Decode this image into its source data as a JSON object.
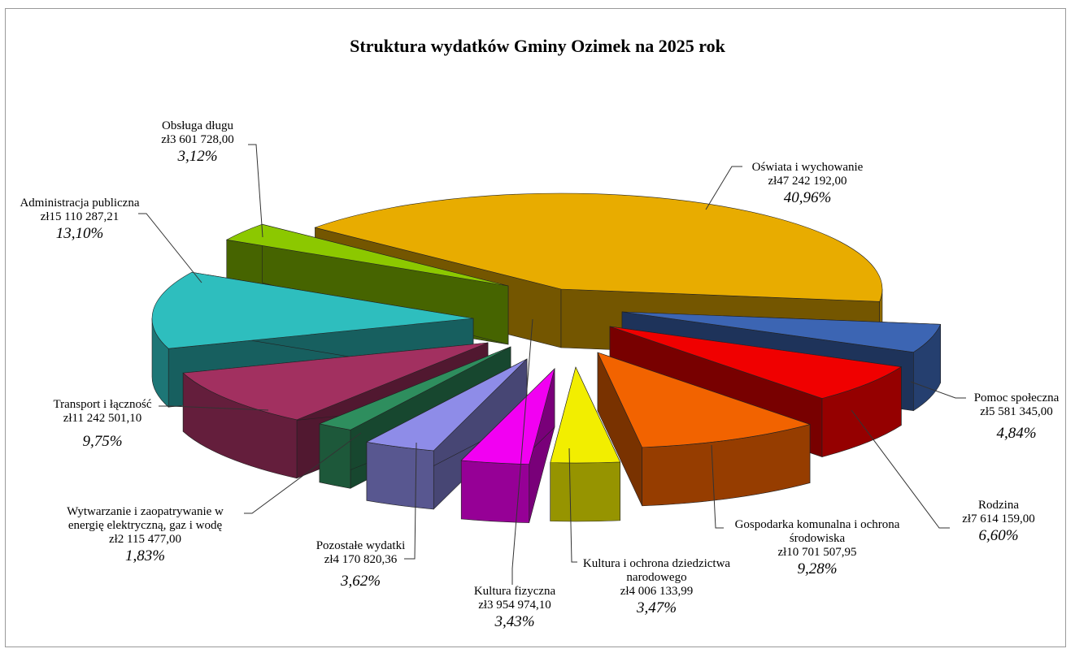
{
  "chart_data": {
    "type": "pie",
    "title": "Struktura wydatków Gminy Ozimek na 2025 rok",
    "three_d": true,
    "exploded": true,
    "legend": "none",
    "slices": [
      {
        "name": "Oświata i wychowanie",
        "amount": "zł47 242 192,00",
        "percent_label": "40,96%",
        "value": 40.96,
        "color": "#E8AC00"
      },
      {
        "name": "Pomoc społeczna",
        "amount": "zł5 581 345,00",
        "percent_label": "4,84%",
        "value": 4.84,
        "color": "#3C65B3"
      },
      {
        "name": "Rodzina",
        "amount": "zł7 614 159,00",
        "percent_label": "6,60%",
        "value": 6.6,
        "color": "#F00000"
      },
      {
        "name": "Gospodarka komunalna i ochrona środowiska",
        "amount": "zł10 701 507,95",
        "percent_label": "9,28%",
        "value": 9.28,
        "color": "#F26300"
      },
      {
        "name": "Kultura i ochrona dziedzictwa narodowego",
        "amount": "zł4 006 133,99",
        "percent_label": "3,47%",
        "value": 3.47,
        "color": "#F2EE00"
      },
      {
        "name": "Kultura fizyczna",
        "amount": "zł3 954 974,10",
        "percent_label": "3,43%",
        "value": 3.43,
        "color": "#F200F2"
      },
      {
        "name": "Pozostałe wydatki",
        "amount": "zł4 170 820,36",
        "percent_label": "3,62%",
        "value": 3.62,
        "color": "#8E8CE8"
      },
      {
        "name": "Wytwarzanie i zaopatrywanie w energię elektryczną, gaz i wodę",
        "amount": "zł2 115 477,00",
        "percent_label": "1,83%",
        "value": 1.83,
        "color": "#2E8E5E"
      },
      {
        "name": "Transport i łączność",
        "amount": "zł11 242 501,10",
        "percent_label": "9,75%",
        "value": 9.75,
        "color": "#A23060"
      },
      {
        "name": "Administracja publiczna",
        "amount": "zł15 110 287,21",
        "percent_label": "13,10%",
        "value": 13.1,
        "color": "#2EBEBE"
      },
      {
        "name": "Obsługa długu",
        "amount": "zł3 601 728,00",
        "percent_label": "3,12%",
        "value": 3.12,
        "color": "#8CC800"
      }
    ]
  },
  "labels": {
    "oswiata": {
      "line1": "Oświata i wychowanie",
      "amount": "zł47 242 192,00",
      "pct": "40,96%"
    },
    "pomoc": {
      "line1": "Pomoc społeczna",
      "amount": "zł5 581 345,00",
      "pct": "4,84%"
    },
    "rodzina": {
      "line1": "Rodzina",
      "amount": "zł7 614 159,00",
      "pct": "6,60%"
    },
    "gospodarka": {
      "line1": "Gospodarka komunalna i ochrona",
      "line2": "środowiska",
      "amount": "zł10 701 507,95",
      "pct": "9,28%"
    },
    "kultura_dz": {
      "line1": "Kultura i ochrona dziedzictwa",
      "line2": "narodowego",
      "amount": "zł4 006 133,99",
      "pct": "3,47%"
    },
    "kultura_fiz": {
      "line1": "Kultura fizyczna",
      "amount": "zł3 954 974,10",
      "pct": "3,43%"
    },
    "pozostale": {
      "line1": "Pozostałe wydatki",
      "amount": "zł4 170 820,36",
      "pct": "3,62%"
    },
    "wytwarzanie": {
      "line1": "Wytwarzanie i zaopatrywanie w",
      "line2": "energię elektryczną, gaz i wodę",
      "amount": "zł2 115 477,00",
      "pct": "1,83%"
    },
    "transport": {
      "line1": "Transport i łączność",
      "amount": "zł11 242 501,10",
      "pct": "9,75%"
    },
    "administracja": {
      "line1": "Administracja publiczna",
      "amount": "zł15 110 287,21",
      "pct": "13,10%"
    },
    "dlug": {
      "line1": "Obsługa długu",
      "amount": "zł3 601 728,00",
      "pct": "3,12%"
    }
  }
}
